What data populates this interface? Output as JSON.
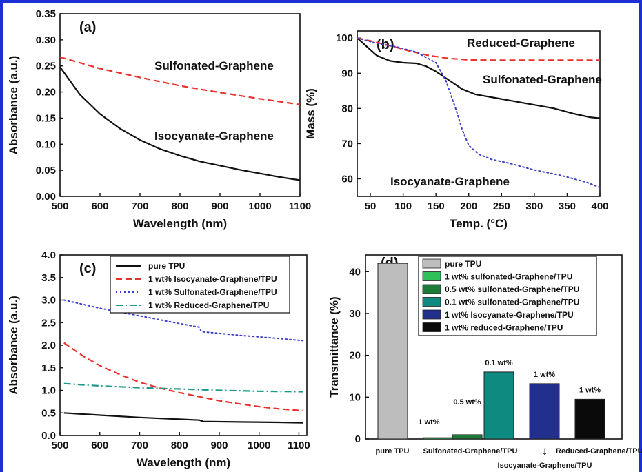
{
  "chart_data": [
    {
      "panel": "(a)",
      "type": "line",
      "xlabel": "Wavelength (nm)",
      "ylabel": "Absorbance (a.u.)",
      "xlim": [
        500,
        1100
      ],
      "ylim": [
        0,
        0.35
      ],
      "xticks": [
        "500",
        "600",
        "700",
        "800",
        "900",
        "1000",
        "1100"
      ],
      "yticks": [
        "0.00",
        "0.05",
        "0.10",
        "0.15",
        "0.20",
        "0.25",
        "0.30",
        "0.35"
      ],
      "series": [
        {
          "name": "Sulfonated-Graphene",
          "style": "dashed",
          "color": "#e8322e",
          "x": [
            500,
            600,
            700,
            800,
            900,
            1000,
            1100
          ],
          "y": [
            0.267,
            0.245,
            0.228,
            0.212,
            0.199,
            0.187,
            0.176
          ]
        },
        {
          "name": "Isocyanate-Graphene",
          "style": "solid",
          "color": "#111111",
          "x": [
            500,
            550,
            600,
            650,
            700,
            750,
            800,
            850,
            900,
            950,
            1000,
            1050,
            1100
          ],
          "y": [
            0.248,
            0.195,
            0.158,
            0.13,
            0.108,
            0.091,
            0.078,
            0.067,
            0.059,
            0.051,
            0.044,
            0.037,
            0.031
          ]
        }
      ]
    },
    {
      "panel": "(b)",
      "type": "line",
      "xlabel": "Temp. (°C)",
      "ylabel": "Mass (%)",
      "xlim": [
        30,
        400
      ],
      "ylim": [
        55,
        102
      ],
      "xticks": [
        "50",
        "100",
        "150",
        "200",
        "250",
        "300",
        "350",
        "400"
      ],
      "yticks": [
        "60",
        "70",
        "80",
        "90",
        "100"
      ],
      "series": [
        {
          "name": "Reduced-Graphene",
          "style": "dashed",
          "color": "#e8322e",
          "x": [
            30,
            50,
            80,
            110,
            140,
            170,
            200,
            250,
            300,
            350,
            400
          ],
          "y": [
            100,
            99.2,
            97.8,
            96.3,
            95,
            94.2,
            93.8,
            93.7,
            93.7,
            93.7,
            93.7
          ]
        },
        {
          "name": "Sulfonated-Graphene",
          "style": "solid",
          "color": "#111111",
          "x": [
            30,
            45,
            60,
            80,
            100,
            120,
            135,
            150,
            170,
            190,
            210,
            240,
            270,
            300,
            330,
            360,
            385,
            400
          ],
          "y": [
            100,
            97.5,
            95,
            93.5,
            93,
            92.8,
            92,
            90.5,
            88,
            85.5,
            84,
            83,
            82,
            81,
            80,
            78.5,
            77.5,
            77.2
          ]
        },
        {
          "name": "Isocyanate-Graphene",
          "style": "dotted",
          "color": "#3b3fc9",
          "x": [
            30,
            60,
            90,
            120,
            150,
            165,
            180,
            190,
            200,
            215,
            235,
            260,
            300,
            340,
            380,
            400
          ],
          "y": [
            100,
            98.5,
            97.5,
            96,
            93,
            88,
            80,
            74,
            69.5,
            67,
            65.5,
            64.5,
            62.5,
            61,
            59,
            57.5
          ]
        }
      ]
    },
    {
      "panel": "(c)",
      "type": "line",
      "xlabel": "Wavelength (nm)",
      "ylabel": "Absorbance (a.u.)",
      "xlim": [
        500,
        1120
      ],
      "ylim": [
        0,
        4.0
      ],
      "xticks": [
        "500",
        "600",
        "700",
        "800",
        "900",
        "1000",
        "1100"
      ],
      "yticks": [
        "0.0",
        "0.5",
        "1.0",
        "1.5",
        "2.0",
        "2.5",
        "3.0",
        "3.5",
        "4.0"
      ],
      "legend": "top-left",
      "series": [
        {
          "name": "pure TPU",
          "style": "solid",
          "color": "#111111",
          "x": [
            510,
            600,
            700,
            800,
            850,
            860,
            950,
            1050,
            1110
          ],
          "y": [
            0.5,
            0.45,
            0.4,
            0.36,
            0.34,
            0.31,
            0.3,
            0.29,
            0.28
          ]
        },
        {
          "name": "1 wt% Isocyanate-Graphene/TPU",
          "style": "dashed",
          "color": "#e8322e",
          "x": [
            510,
            560,
            600,
            650,
            700,
            750,
            800,
            850,
            900,
            950,
            1000,
            1050,
            1110
          ],
          "y": [
            2.05,
            1.75,
            1.55,
            1.35,
            1.18,
            1.05,
            0.95,
            0.86,
            0.77,
            0.7,
            0.64,
            0.59,
            0.55
          ]
        },
        {
          "name": "1 wt% Sulfonated-Graphene/TPU",
          "style": "dotted",
          "color": "#3b3fc9",
          "x": [
            510,
            600,
            700,
            800,
            850,
            855,
            950,
            1050,
            1110
          ],
          "y": [
            3.0,
            2.82,
            2.65,
            2.48,
            2.4,
            2.3,
            2.22,
            2.15,
            2.1
          ]
        },
        {
          "name": "1 wt% Reduced-Graphene/TPU",
          "style": "dashdot",
          "color": "#1b9a8a",
          "x": [
            510,
            600,
            700,
            800,
            900,
            1000,
            1110
          ],
          "y": [
            1.15,
            1.1,
            1.06,
            1.03,
            1.0,
            0.98,
            0.97
          ]
        }
      ]
    },
    {
      "panel": "(d)",
      "type": "bar",
      "ylabel": "Transmittance (%)",
      "ylim": [
        0,
        44
      ],
      "yticks": [
        "0",
        "10",
        "20",
        "30",
        "40"
      ],
      "categories": [
        "pure TPU",
        "Sulfonated-Graphene/TPU",
        "Isocyanate-Graphene/TPU",
        "Reduced-Graphene/TPU"
      ],
      "category_arrow": "↓",
      "legend": "top-right",
      "series": [
        {
          "name": "pure TPU",
          "color": "#bdbdbd",
          "value": 42,
          "label": ""
        },
        {
          "name": "1 wt% sulfonated-Graphene/TPU",
          "color": "#2fc05a",
          "value": 0.3,
          "label": "1 wt%"
        },
        {
          "name": "0.5 wt% sulfonated-Graphene/TPU",
          "color": "#1c7a3a",
          "value": 1.0,
          "label": "0.5 wt%"
        },
        {
          "name": "0.1 wt% sulfonated-Graphene/TPU",
          "color": "#0f8a80",
          "value": 16,
          "label": "0.1 wt%"
        },
        {
          "name": "1 wt% Isocyanate-Graphene/TPU",
          "color": "#232f8c",
          "value": 13.2,
          "label": "1 wt%"
        },
        {
          "name": "1 wt% reduced-Graphene/TPU",
          "color": "#0a0a0a",
          "value": 9.5,
          "label": "1 wt%"
        }
      ]
    }
  ]
}
